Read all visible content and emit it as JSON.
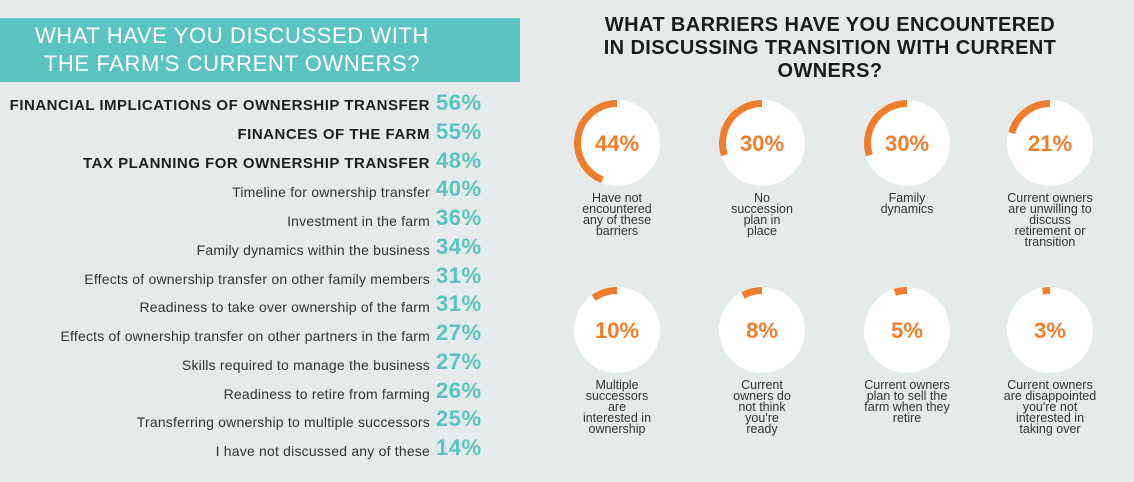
{
  "left": {
    "title_lines": [
      "WHAT HAVE YOU DISCUSSED WITH",
      "THE FARM'S CURRENT OWNERS?"
    ]
  },
  "right": {
    "title_lines": [
      "WHAT BARRIERS HAVE YOU ENCOUNTERED",
      "IN DISCUSSING TRANSITION WITH CURRENT",
      "OWNERS?"
    ]
  },
  "colors": {
    "teal": "#5bc4c0",
    "orange": "#ef7d2c",
    "background": "#e4ebea",
    "track": "#ffffff"
  },
  "chart_data": [
    {
      "type": "bar",
      "title": "WHAT HAVE YOU DISCUSSED WITH THE FARM'S CURRENT OWNERS?",
      "categories": [
        "FINANCIAL IMPLICATIONS OF OWNERSHIP TRANSFER",
        "FINANCES OF THE FARM",
        "TAX PLANNING FOR OWNERSHIP TRANSFER",
        "Timeline for ownership transfer",
        "Investment in the farm",
        "Family dynamics within the business",
        "Effects of ownership transfer on other family members",
        "Readiness to take over ownership of the farm",
        "Effects of ownership transfer on other partners in the farm",
        "Skills required to manage the business",
        "Readiness to retire from farming",
        "Transferring ownership to multiple successors",
        "I have not discussed any of these"
      ],
      "values": [
        56,
        55,
        48,
        40,
        36,
        34,
        31,
        31,
        27,
        27,
        26,
        25,
        14
      ],
      "value_labels": [
        "56%",
        "55%",
        "48%",
        "40%",
        "36%",
        "34%",
        "31%",
        "31%",
        "27%",
        "27%",
        "26%",
        "25%",
        "14%"
      ],
      "highlighted_top": 3
    },
    {
      "type": "pie",
      "title": "WHAT BARRIERS HAVE YOU ENCOUNTERED IN DISCUSSING TRANSITION WITH CURRENT OWNERS?",
      "items": [
        {
          "value": 44,
          "value_label": "44%",
          "label_lines": [
            "Have not",
            "encountered",
            "any of these",
            "barriers"
          ]
        },
        {
          "value": 30,
          "value_label": "30%",
          "label_lines": [
            "No",
            "succession",
            "plan in",
            "place"
          ]
        },
        {
          "value": 30,
          "value_label": "30%",
          "label_lines": [
            "Family",
            "dynamics"
          ]
        },
        {
          "value": 21,
          "value_label": "21%",
          "label_lines": [
            "Current owners",
            "are unwilling to",
            "discuss",
            "retirement or",
            "transition"
          ]
        },
        {
          "value": 10,
          "value_label": "10%",
          "label_lines": [
            "Multiple",
            "successors",
            "are",
            "interested in",
            "ownership"
          ]
        },
        {
          "value": 8,
          "value_label": "8%",
          "label_lines": [
            "Current",
            "owners do",
            "not think",
            "you're",
            "ready"
          ]
        },
        {
          "value": 5,
          "value_label": "5%",
          "label_lines": [
            "Current owners",
            "plan to sell the",
            "farm when they",
            "retire"
          ]
        },
        {
          "value": 3,
          "value_label": "3%",
          "label_lines": [
            "Current owners",
            "are disappointed",
            "you're not",
            "interested in",
            "taking over"
          ]
        }
      ]
    }
  ]
}
